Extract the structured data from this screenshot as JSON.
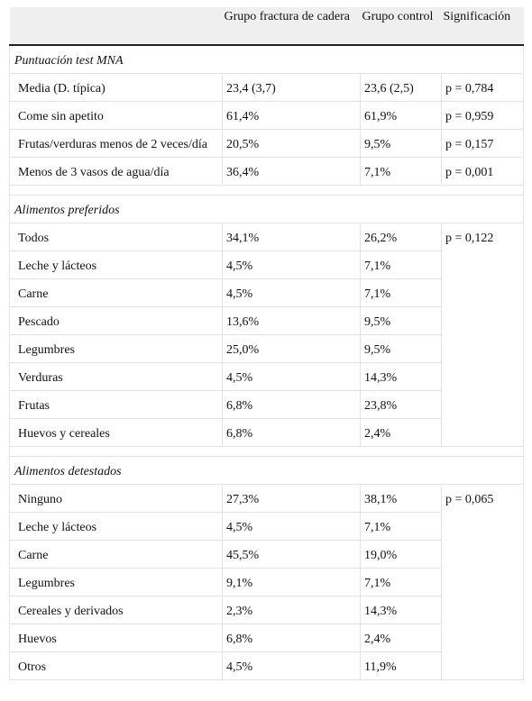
{
  "header": [
    "",
    "Grupo fractura de cadera",
    "Grupo control",
    "Significación"
  ],
  "sections": [
    {
      "title": "Puntuación test MNA",
      "rows": [
        [
          "Media (D. típica)",
          "23,4 (3,7)",
          "23,6 (2,5)",
          "p = 0,784"
        ],
        [
          "Come sin apetito",
          "61,4%",
          "61,9%",
          "p = 0,959"
        ],
        [
          "Frutas/verduras menos de 2 veces/día",
          "20,5%",
          "9,5%",
          "p = 0,157"
        ],
        [
          "Menos de 3 vasos de agua/día",
          "36,4%",
          "7,1%",
          "p = 0,001"
        ]
      ]
    },
    {
      "title": "Alimentos preferidos",
      "significance": "p = 0,122",
      "rows": [
        [
          "Todos",
          "34,1%",
          "26,2%"
        ],
        [
          "Leche y lácteos",
          "4,5%",
          "7,1%"
        ],
        [
          "Carne",
          "4,5%",
          "7,1%"
        ],
        [
          "Pescado",
          "13,6%",
          "9,5%"
        ],
        [
          "Legumbres",
          "25,0%",
          "9,5%"
        ],
        [
          "Verduras",
          "4,5%",
          "14,3%"
        ],
        [
          "Frutas",
          "6,8%",
          "23,8%"
        ],
        [
          "Huevos y cereales",
          "6,8%",
          "2,4%"
        ]
      ]
    },
    {
      "title": "Alimentos detestados",
      "significance": "p = 0,065",
      "rows": [
        [
          "Ninguno",
          "27,3%",
          "38,1%"
        ],
        [
          "Leche y lácteos",
          "4,5%",
          "7,1%"
        ],
        [
          "Carne",
          "45,5%",
          "19,0%"
        ],
        [
          "Legumbres",
          "9,1%",
          "7,1%"
        ],
        [
          "Cereales y derivados",
          "2,3%",
          "14,3%"
        ],
        [
          "Huevos",
          "6,8%",
          "2,4%"
        ],
        [
          "Otros",
          "4,5%",
          "11,9%"
        ]
      ]
    }
  ]
}
